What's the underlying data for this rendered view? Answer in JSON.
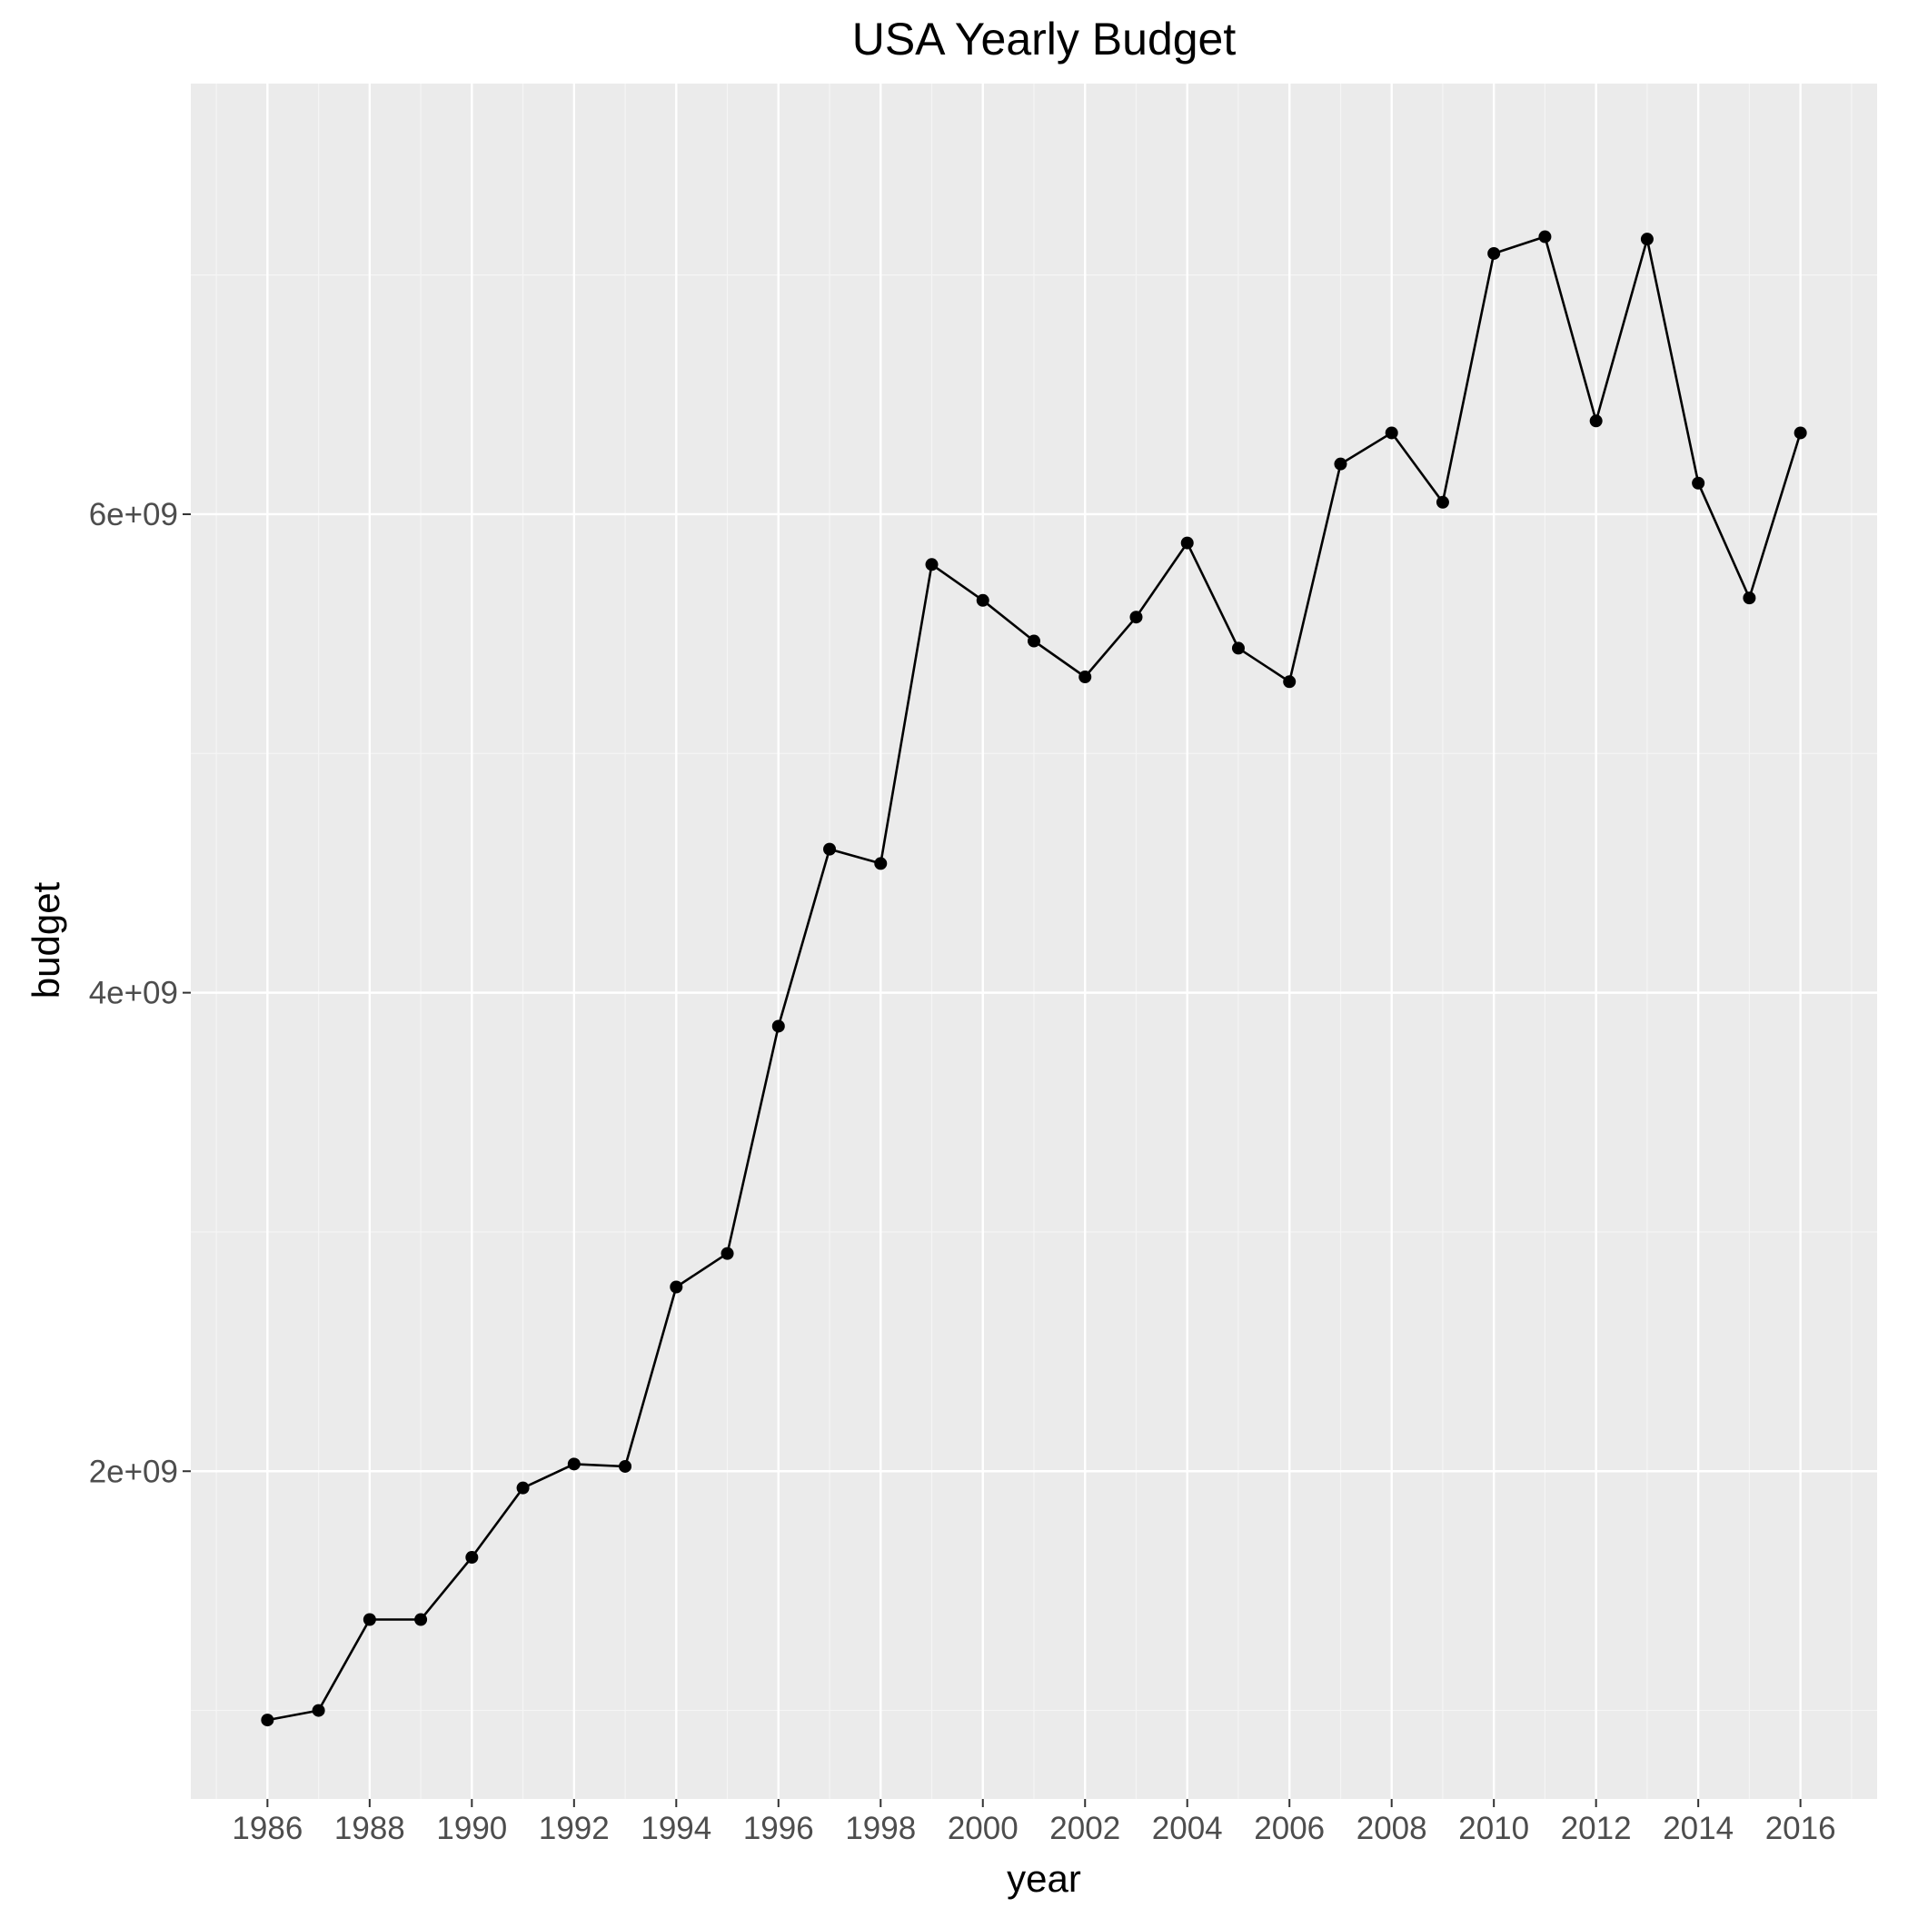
{
  "colors": {
    "panel_background": "#ebebeb",
    "grid_major": "#ffffff",
    "grid_minor": "#f5f5f5",
    "line": "#000000",
    "point": "#000000",
    "tick_label": "#4d4d4d",
    "tick_mark": "#333333"
  },
  "chart_data": {
    "type": "line",
    "title": "USA Yearly Budget",
    "xlabel": "year",
    "ylabel": "budget",
    "grid": true,
    "legend": "none",
    "xlim": [
      1984.5,
      2017.5
    ],
    "ylim": [
      630000000,
      7800000000
    ],
    "x_ticks": [
      1986,
      1988,
      1990,
      1992,
      1994,
      1996,
      1998,
      2000,
      2002,
      2004,
      2006,
      2008,
      2010,
      2012,
      2014,
      2016
    ],
    "x_tick_labels": [
      "1986",
      "1988",
      "1990",
      "1992",
      "1994",
      "1996",
      "1998",
      "2000",
      "2002",
      "2004",
      "2006",
      "2008",
      "2010",
      "2012",
      "2014",
      "2016"
    ],
    "y_ticks": [
      2000000000,
      4000000000,
      6000000000
    ],
    "y_tick_labels": [
      "2e+09",
      "4e+09",
      "6e+09"
    ],
    "series": [
      {
        "x": [
          1986,
          1987,
          1988,
          1989,
          1990,
          1991,
          1992,
          1993,
          1994,
          1995,
          1996,
          1997,
          1998,
          1999,
          2000,
          2001,
          2002,
          2003,
          2004,
          2005,
          2006,
          2007,
          2008,
          2009,
          2010,
          2011,
          2012,
          2013,
          2014,
          2015,
          2016
        ],
        "values": [
          960000000,
          1000000000,
          1380000000,
          1380000000,
          1640000000,
          1930000000,
          2030000000,
          2020000000,
          2770000000,
          2910000000,
          3860000000,
          4600000000,
          4540000000,
          5790000000,
          5640000000,
          5470000000,
          5320000000,
          5570000000,
          5880000000,
          5440000000,
          5300000000,
          6210000000,
          6340000000,
          6050000000,
          7090000000,
          7160000000,
          6390000000,
          7150000000,
          6130000000,
          5650000000,
          6340000000
        ]
      }
    ]
  }
}
